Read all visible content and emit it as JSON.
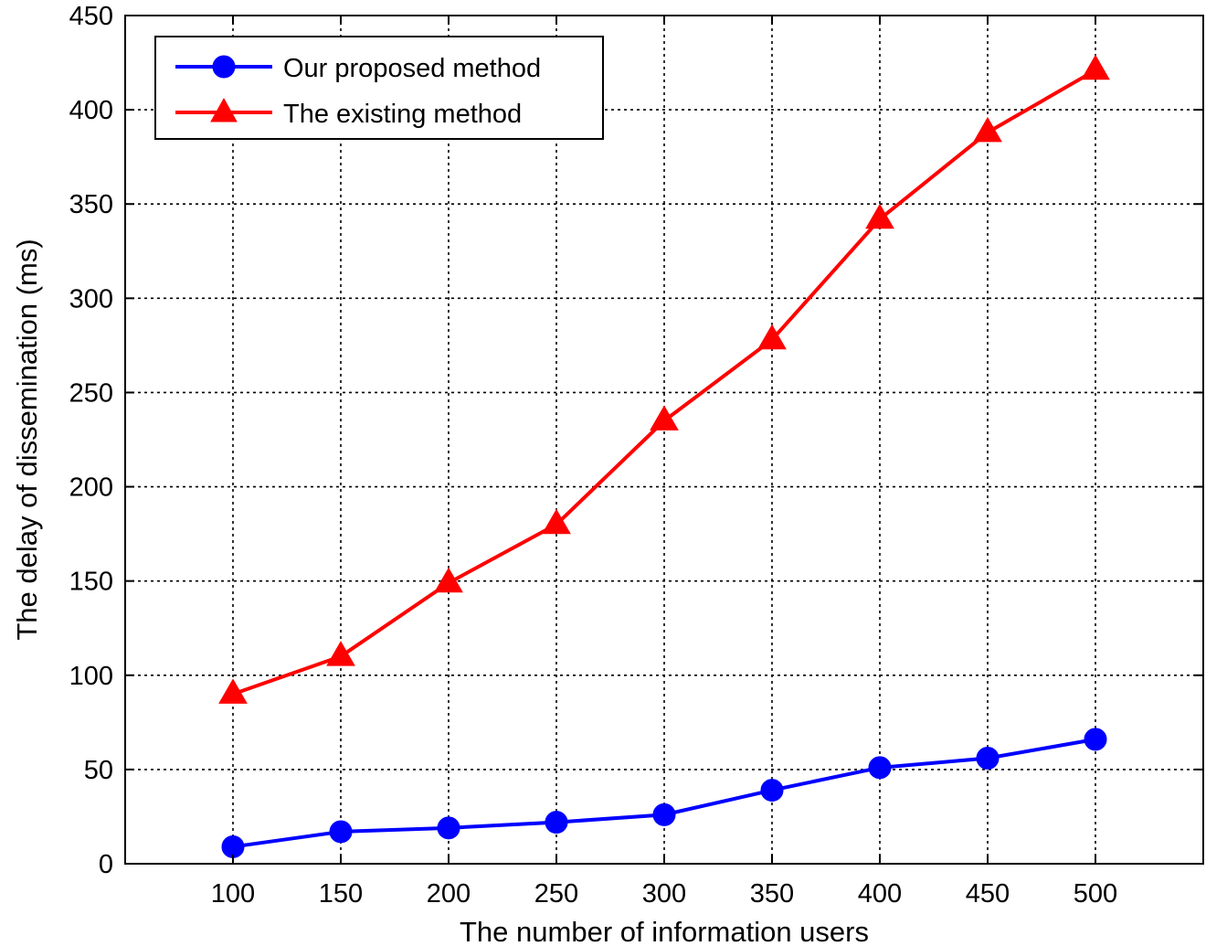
{
  "chart_data": {
    "type": "line",
    "title": "",
    "xlabel": "The number of information users",
    "ylabel": "The delay of dissemination (ms)",
    "x": [
      100,
      150,
      200,
      250,
      300,
      350,
      400,
      450,
      500
    ],
    "xlim": [
      50,
      550
    ],
    "ylim": [
      0,
      450
    ],
    "xticks": [
      100,
      150,
      200,
      250,
      300,
      350,
      400,
      450,
      500
    ],
    "yticks": [
      0,
      50,
      100,
      150,
      200,
      250,
      300,
      350,
      400,
      450
    ],
    "grid": true,
    "legend_position": "top-left",
    "series": [
      {
        "name": "Our proposed method",
        "color": "#0000ff",
        "marker": "circle",
        "values": [
          9,
          17,
          19,
          22,
          26,
          39,
          51,
          56,
          66
        ]
      },
      {
        "name": "The existing method",
        "color": "#ff0000",
        "marker": "triangle",
        "values": [
          90,
          110,
          149,
          180,
          235,
          278,
          342,
          388,
          421
        ]
      }
    ]
  }
}
